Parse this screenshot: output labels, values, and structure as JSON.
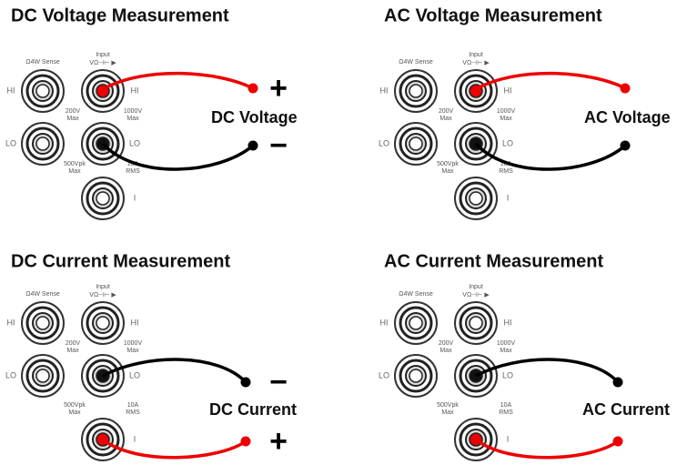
{
  "panels": [
    {
      "title": "DC Voltage Measurement",
      "label": "DC Voltage",
      "signs": [
        "+",
        "−"
      ],
      "terminal_labels": [
        "Ω4W Sense",
        "Input",
        "VΩ⊣⊢ ▶",
        "HI",
        "HI",
        "LO",
        "LO",
        "200V",
        "Max",
        "1000V",
        "Max",
        "500Vpk",
        "Max",
        "10A",
        "RMS",
        "I"
      ]
    },
    {
      "title": "AC Voltage Measurement",
      "label": "AC Voltage",
      "terminal_labels": [
        "Ω4W Sense",
        "Input",
        "VΩ⊣⊢ ▶",
        "HI",
        "HI",
        "LO",
        "LO",
        "200V",
        "Max",
        "1000V",
        "Max",
        "500Vpk",
        "Max",
        "10A",
        "RMS",
        "I"
      ]
    },
    {
      "title": "DC Current Measurement",
      "label": "DC Current",
      "signs": [
        "−",
        "+"
      ],
      "terminal_labels": [
        "Ω4W Sense",
        "Input",
        "VΩ⊣⊢ ▶",
        "HI",
        "HI",
        "LO",
        "LO",
        "200V",
        "Max",
        "1000V",
        "Max",
        "500Vpk",
        "Max",
        "10A",
        "RMS",
        "I"
      ]
    },
    {
      "title": "AC Current Measurement",
      "label": "AC Current",
      "terminal_labels": [
        "Ω4W Sense",
        "Input",
        "VΩ⊣⊢ ▶",
        "HI",
        "HI",
        "LO",
        "LO",
        "200V",
        "Max",
        "1000V",
        "Max",
        "500Vpk",
        "Max",
        "10A",
        "RMS",
        "I"
      ]
    }
  ]
}
